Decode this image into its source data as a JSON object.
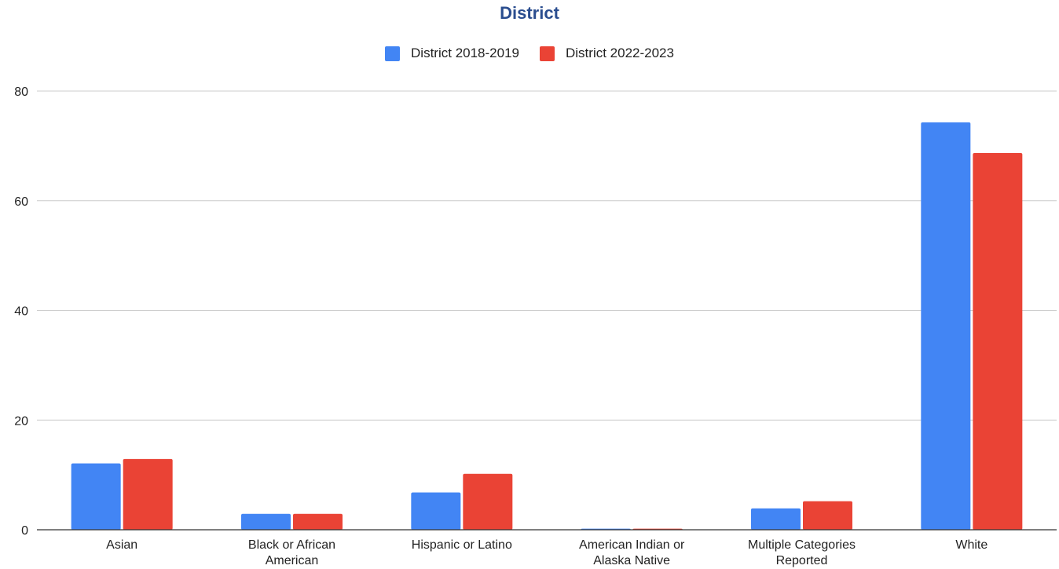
{
  "chart_data": {
    "type": "bar",
    "title": "District",
    "categories": [
      [
        "Asian"
      ],
      [
        "Black or African",
        "American"
      ],
      [
        "Hispanic or Latino"
      ],
      [
        "American Indian or",
        "Alaska Native"
      ],
      [
        "Multiple Categories",
        "Reported"
      ],
      [
        "White"
      ]
    ],
    "series": [
      {
        "name": "District 2018-2019",
        "color": "#4285f4",
        "values": [
          12.1,
          2.9,
          6.8,
          0.2,
          3.9,
          74.3
        ]
      },
      {
        "name": "District 2022-2023",
        "color": "#ea4335",
        "values": [
          12.9,
          2.9,
          10.2,
          0.2,
          5.2,
          68.7
        ]
      }
    ],
    "xlabel": "",
    "ylabel": "",
    "ylim": [
      0,
      80
    ],
    "yticks": [
      "0",
      "20",
      "40",
      "60",
      "80"
    ],
    "grid": true,
    "legend_position": "top-center"
  }
}
